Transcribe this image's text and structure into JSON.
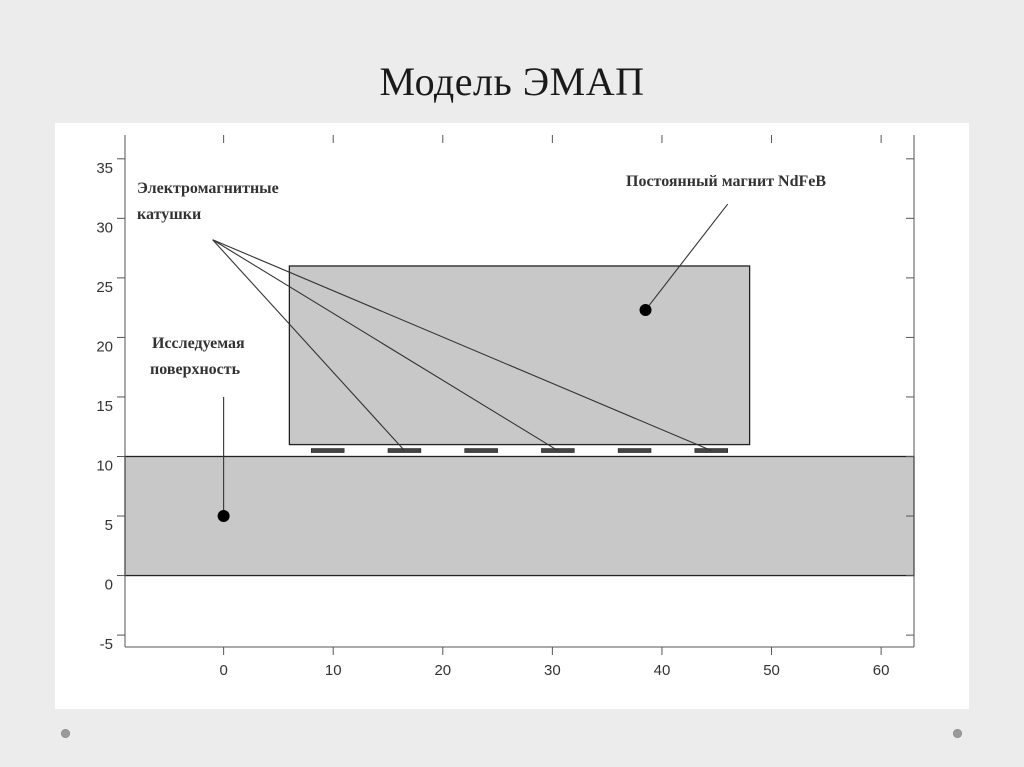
{
  "slide": {
    "title": "Модель ЭМАП"
  },
  "diagram": {
    "x_axis": {
      "min": -9,
      "max": 63,
      "ticks": [
        0,
        10,
        20,
        30,
        40,
        50,
        60
      ],
      "labels": [
        "0",
        "10",
        "20",
        "30",
        "40",
        "50",
        "60"
      ]
    },
    "y_axis": {
      "min": -6,
      "max": 37,
      "ticks": [
        35,
        30,
        25,
        20,
        15,
        10,
        5,
        0,
        -5
      ],
      "labels": [
        "35",
        "30",
        "25",
        "20",
        "15",
        "10",
        "5",
        "0",
        "-5"
      ]
    },
    "regions": {
      "surface": {
        "x_min": -9,
        "x_max": 63,
        "y_min": 0,
        "y_max": 10,
        "fill": "#c8c8c8"
      },
      "magnet": {
        "x_min": 6,
        "x_max": 48,
        "y_min": 11,
        "y_max": 26,
        "fill": "#c8c8c8"
      }
    },
    "coils": {
      "y": 10.5,
      "segments": [
        [
          8,
          11
        ],
        [
          15,
          18
        ],
        [
          22,
          25
        ],
        [
          29,
          32
        ],
        [
          36,
          39
        ],
        [
          43,
          46
        ]
      ]
    },
    "annotations": {
      "coils": {
        "label_lines": [
          "Электромагнитные",
          "катушки"
        ],
        "origin": [
          -1,
          28.2
        ],
        "targets": [
          [
            16.5,
            10.5
          ],
          [
            30.5,
            10.5
          ],
          [
            44.5,
            10.5
          ]
        ]
      },
      "magnet": {
        "label": "Постоянный магнит NdFeB",
        "dot": [
          38.5,
          22.3
        ],
        "line_end": [
          46,
          31.2
        ]
      },
      "surface": {
        "label_lines": [
          "Исследуемая",
          "поверхность"
        ],
        "dot": [
          0,
          5
        ],
        "line_end": [
          0,
          15
        ]
      }
    }
  }
}
